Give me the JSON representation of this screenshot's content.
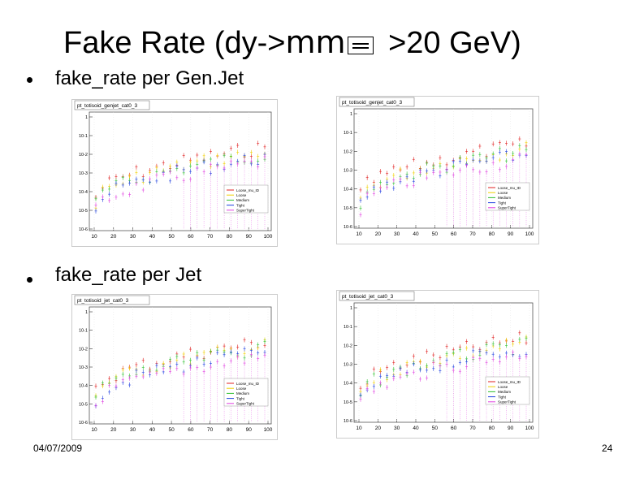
{
  "slide": {
    "title_prefix": "Fake Rate (dy->",
    "title_mu": "mm",
    "title_suffix": " >20 GeV)",
    "bullets": [
      "fake_rate per Gen.Jet",
      "fake_rate per Jet"
    ],
    "date": "04/07/2009",
    "page_number": "24"
  },
  "plots": [
    {
      "name": "pt_totisoid_genjet_cat0_3",
      "legend": [
        "Loose_mu_ID",
        "Loose",
        "Medium",
        "Tight",
        "SuperTight"
      ]
    },
    {
      "name": "pt_totisoid_genjet_cat0_3",
      "legend": [
        "Loose_mu_ID",
        "Loose",
        "Medium",
        "Tight",
        "SuperTight"
      ]
    },
    {
      "name": "pt_totisoid_jet_cat0_3",
      "legend": [
        "Loose_mu_ID",
        "Loose",
        "Medium",
        "Tight",
        "SuperTight"
      ]
    },
    {
      "name": "pt_totisoid_jet_cat0_3",
      "legend": [
        "Loose_mu_ID",
        "Loose",
        "Medium",
        "Tight",
        "SuperTight"
      ]
    }
  ],
  "axis": {
    "x_ticks": [
      "10",
      "20",
      "30",
      "40",
      "50",
      "60",
      "70",
      "80",
      "90",
      "100"
    ],
    "y_ticks": [
      "1",
      "10^-1",
      "10^-2",
      "10^-3",
      "10^-4",
      "10^-5",
      "10^-6"
    ]
  },
  "colors": {
    "Loose_mu_ID": "#e02020",
    "Loose": "#f0d000",
    "Medium": "#30c030",
    "Tight": "#2040e0",
    "SuperTight": "#e040e0"
  }
}
